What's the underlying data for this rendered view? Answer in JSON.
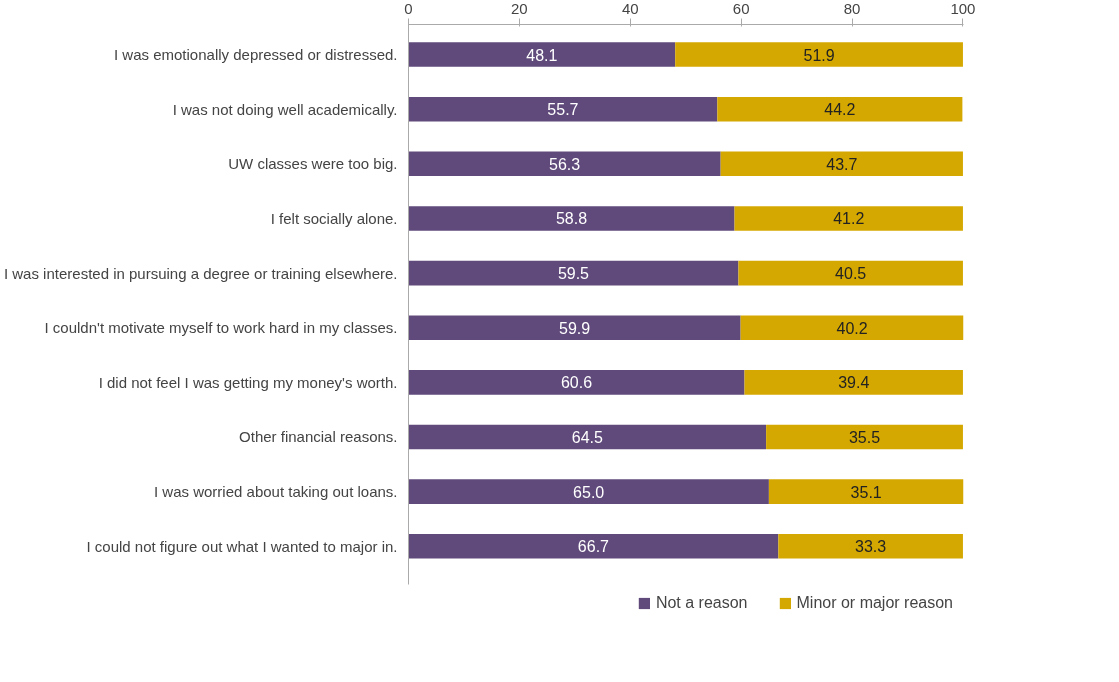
{
  "chart_data": {
    "type": "bar",
    "orientation": "horizontal",
    "stacked": true,
    "categories": [
      "I was emotionally depressed or distressed.",
      "I was not doing well academically.",
      "UW classes were too big.",
      "I felt socially alone.",
      "I was interested in pursuing a degree or training elsewhere.",
      "I couldn't motivate myself to work hard in my classes.",
      "I did not feel I was getting my money's worth.",
      "Other financial reasons.",
      "I was worried about taking out loans.",
      "I could not figure out what I wanted to major in."
    ],
    "series": [
      {
        "name": "Not a reason",
        "color": "#604a7b",
        "values": [
          48.1,
          55.7,
          56.3,
          58.8,
          59.5,
          59.9,
          60.6,
          64.5,
          65.0,
          66.7
        ],
        "value_labels": [
          "48.1",
          "55.7",
          "56.3",
          "58.8",
          "59.5",
          "59.9",
          "60.6",
          "64.5",
          "65.0",
          "66.7"
        ]
      },
      {
        "name": "Minor or major reason",
        "color": "#d4a800",
        "values": [
          51.9,
          44.2,
          43.7,
          41.2,
          40.5,
          40.2,
          39.4,
          35.5,
          35.1,
          33.3
        ],
        "value_labels": [
          "51.9",
          "44.2",
          "43.7",
          "41.2",
          "40.5",
          "40.2",
          "39.4",
          "35.5",
          "35.1",
          "33.3"
        ]
      }
    ],
    "xlim": [
      0,
      100.1
    ],
    "xticks": [
      0,
      20,
      40,
      60,
      80,
      100
    ],
    "grid": false,
    "legend": "bottom"
  }
}
